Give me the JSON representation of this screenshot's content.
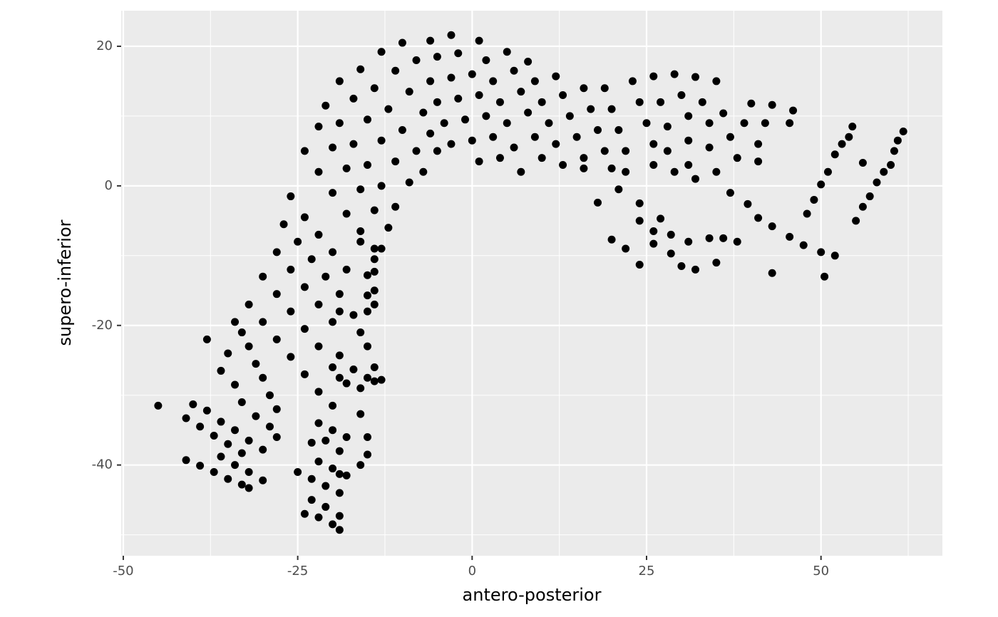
{
  "chart_data": {
    "type": "scatter",
    "x_label": "antero-posterior",
    "y_label": "supero-inferior",
    "color": "#000000",
    "xlim": [
      -50.3,
      67.4
    ],
    "ylim": [
      -53,
      25.1
    ],
    "xticks": [
      -50,
      -25,
      0,
      25,
      50
    ],
    "yticks": [
      -40,
      -20,
      0,
      20
    ],
    "x_minor_breaks": [
      -37.5,
      -12.5,
      12.5,
      37.5,
      62.5
    ],
    "y_minor_breaks": [
      -50,
      -30,
      -10,
      10
    ],
    "grid": true,
    "x": [
      -45,
      -41,
      -39,
      -37,
      -35,
      -33,
      -40,
      -38,
      -36,
      -34,
      -32,
      -30,
      -36,
      -34,
      -32,
      -30,
      -37,
      -35,
      -33,
      -32,
      -41,
      -39,
      -38,
      -36,
      -35,
      -34,
      -33,
      -32,
      -31,
      -30,
      -29,
      -28,
      -34,
      -33,
      -31,
      -29,
      -28,
      -32,
      -30,
      -28,
      -26,
      -24,
      -22,
      -20,
      -30,
      -28,
      -26,
      -24,
      -22,
      -20,
      -28,
      -26,
      -24,
      -22,
      -20,
      -27,
      -25,
      -23,
      -21,
      -19,
      -26,
      -24,
      -22,
      -20,
      -18,
      -24,
      -22,
      -20,
      -18,
      -16,
      -14,
      -22,
      -20,
      -18,
      -16,
      -14,
      -12,
      -21,
      -19,
      -17,
      -15,
      -13,
      -11,
      -19,
      -17,
      -15,
      -13,
      -11,
      -9,
      -16,
      -14,
      -12,
      -10,
      -8,
      -7,
      -13,
      -11,
      -9,
      -7,
      -6,
      -5,
      -10,
      -8,
      -6,
      -5,
      -4,
      -3,
      -6,
      -5,
      -3,
      -2,
      -1,
      0,
      1,
      -3,
      -2,
      0,
      1,
      2,
      3,
      4,
      1,
      2,
      3,
      4,
      5,
      6,
      7,
      5,
      6,
      7,
      8,
      9,
      10,
      8,
      9,
      10,
      11,
      12,
      13,
      12,
      13,
      14,
      15,
      16,
      16,
      16,
      17,
      18,
      19,
      20,
      19,
      20,
      21,
      22,
      22,
      23,
      24,
      25,
      26,
      26,
      26,
      27,
      28,
      28,
      29,
      29,
      30,
      31,
      31,
      31,
      32,
      33,
      34,
      34,
      35,
      35,
      36,
      37,
      38,
      40,
      39,
      41,
      41,
      43,
      42,
      46,
      45.5,
      18,
      20,
      22,
      21,
      24,
      24,
      24,
      26,
      26,
      27,
      28.5,
      28.5,
      30,
      31,
      32,
      32,
      34,
      35,
      36,
      38,
      37,
      39.5,
      41,
      43,
      43,
      45.5,
      47.5,
      48,
      49,
      50,
      51,
      50,
      50.5,
      52,
      52,
      53,
      54,
      54.5,
      56,
      55,
      56,
      57,
      58,
      59,
      60,
      60.5,
      61,
      61.8,
      -25,
      -24,
      -22,
      -20,
      -19,
      -23,
      -21,
      -19,
      -23,
      -21,
      -19,
      -22,
      -20,
      -19,
      -21,
      -19,
      -23,
      -22,
      -20,
      -18,
      -18,
      -16,
      -15,
      -15,
      -16,
      -19,
      -18,
      -16,
      -15,
      -14,
      -13,
      -14,
      -15,
      -16,
      -15,
      -14,
      -15,
      -14,
      -14,
      -15,
      -13,
      -14,
      -16,
      -17,
      -19,
      -17,
      -19
    ],
    "values": [
      -31.5,
      -33.3,
      -34.5,
      -35.8,
      -37,
      -38.3,
      -31.3,
      -32.2,
      -33.8,
      -35,
      -36.5,
      -37.8,
      -38.8,
      -40,
      -41,
      -42.2,
      -41,
      -42,
      -42.8,
      -43.3,
      -39.3,
      -40.1,
      -22,
      -26.5,
      -24,
      -19.5,
      -21,
      -23,
      -25.5,
      -27.5,
      -30,
      -32,
      -28.5,
      -31,
      -33,
      -34.5,
      -36,
      -17,
      -19.5,
      -22,
      -24.5,
      -27,
      -29.5,
      -31.5,
      -13,
      -15.5,
      -18,
      -20.5,
      -23,
      -26,
      -9.5,
      -12,
      -14.5,
      -17,
      -19.5,
      -5.5,
      -8,
      -10.5,
      -13,
      -15.5,
      -1.5,
      -4.5,
      -7,
      -9.5,
      -12,
      5,
      2,
      -1,
      -4,
      -6.5,
      -9,
      8.5,
      5.5,
      2.5,
      -0.5,
      -3.5,
      -6,
      11.5,
      9,
      6,
      3,
      0,
      -3,
      15,
      12.5,
      9.5,
      6.5,
      3.5,
      0.5,
      16.7,
      14,
      11,
      8,
      5,
      2,
      19.2,
      16.5,
      13.5,
      10.5,
      7.5,
      5,
      20.5,
      18,
      15,
      12,
      9,
      6,
      20.8,
      18.5,
      15.5,
      12.5,
      9.5,
      6.5,
      3.5,
      21.6,
      19,
      16,
      13,
      10,
      7,
      4,
      20.8,
      18,
      15,
      12,
      9,
      5.5,
      2,
      19.2,
      16.5,
      13.5,
      10.5,
      7,
      4,
      17.8,
      15,
      12,
      9,
      6,
      3,
      15.7,
      13,
      10,
      7,
      4,
      2.5,
      14,
      11,
      8,
      5,
      2.5,
      14,
      11,
      8,
      5,
      2,
      15,
      12,
      9,
      6,
      3,
      15.7,
      12,
      8.5,
      5,
      2,
      16,
      13,
      10,
      6.5,
      3,
      15.6,
      12,
      9,
      5.5,
      2,
      15,
      10.4,
      7,
      4,
      11.8,
      9,
      6,
      3.5,
      11.6,
      9,
      10.8,
      9,
      -2.4,
      -7.7,
      -9,
      -0.5,
      -2.5,
      -5,
      -11.3,
      -6.5,
      -8.3,
      -4.7,
      -7,
      -9.7,
      -11.5,
      -8,
      -12,
      1,
      -7.5,
      -11,
      -7.5,
      -8,
      -1,
      -2.6,
      -4.6,
      -5.8,
      -12.5,
      -7.3,
      -8.5,
      -4,
      -2,
      0.2,
      2,
      -9.5,
      -13,
      -10,
      4.5,
      6,
      7,
      8.5,
      3.3,
      -5,
      -3,
      -1.5,
      0.5,
      2,
      3,
      5,
      6.5,
      7.8,
      -41,
      -47,
      -47.5,
      -48.5,
      -49.3,
      -45,
      -46,
      -47.3,
      -42,
      -43,
      -44,
      -39.5,
      -40.5,
      -41.3,
      -36.5,
      -38,
      -36.8,
      -34,
      -35,
      -36,
      -41.5,
      -40,
      -38.5,
      -36,
      -32.7,
      -24.3,
      -28.3,
      -29,
      -27.5,
      -28,
      -27.8,
      -26,
      -23,
      -21,
      -18,
      -17,
      -15.7,
      -15,
      -12.3,
      -12.8,
      -9,
      -10.5,
      -8,
      -18.5,
      -18,
      -26.3,
      -27.5
    ]
  }
}
